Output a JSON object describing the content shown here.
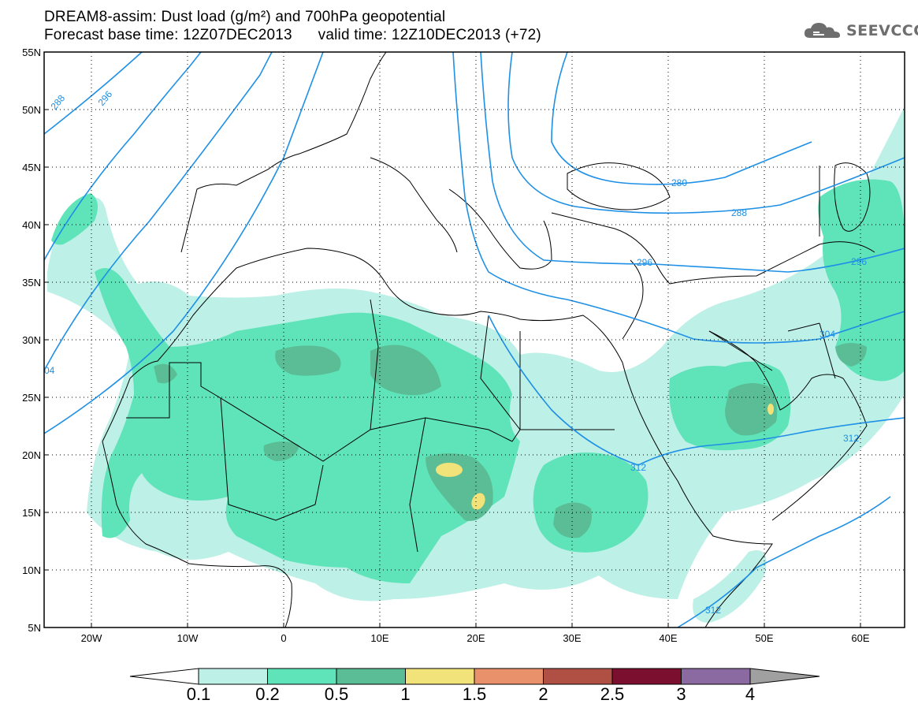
{
  "title": {
    "line1": "DREAM8-assim: Dust load (g/m²) and 700hPa geopotential",
    "line2": "Forecast base time: 12Z07DEC2013      valid time: 12Z10DEC2013 (+72)"
  },
  "logo": {
    "text": "SEEVCCC",
    "icon": "cloud-icon"
  },
  "map": {
    "lon_ticks": [
      "20W",
      "10W",
      "0",
      "10E",
      "20E",
      "30E",
      "40E",
      "50E",
      "60E"
    ],
    "lat_ticks": [
      "55N",
      "50N",
      "45N",
      "40N",
      "35N",
      "30N",
      "25N",
      "20N",
      "15N",
      "10N",
      "5N"
    ],
    "contour_labels": [
      "288",
      "296",
      "280",
      "288",
      "296",
      "304",
      "312",
      "312",
      "312",
      "04",
      "296"
    ]
  },
  "colorbar": {
    "labels": [
      "0.1",
      "0.2",
      "0.5",
      "1",
      "1.5",
      "2",
      "2.5",
      "3",
      "4"
    ],
    "colors": [
      "#ffffff",
      "#bdf0e6",
      "#5fe3b8",
      "#5bbd95",
      "#f2e27a",
      "#e8916a",
      "#b05045",
      "#7a0f2f",
      "#8a6aa0",
      "#a0a0a0"
    ]
  },
  "colors": {
    "contour": "#1e90e6",
    "coast": "#000000",
    "dust_low": "#bdf0e6",
    "dust_mid": "#5fe3b8",
    "dust_high": "#5bbd95",
    "dust_peak": "#f2e27a"
  }
}
